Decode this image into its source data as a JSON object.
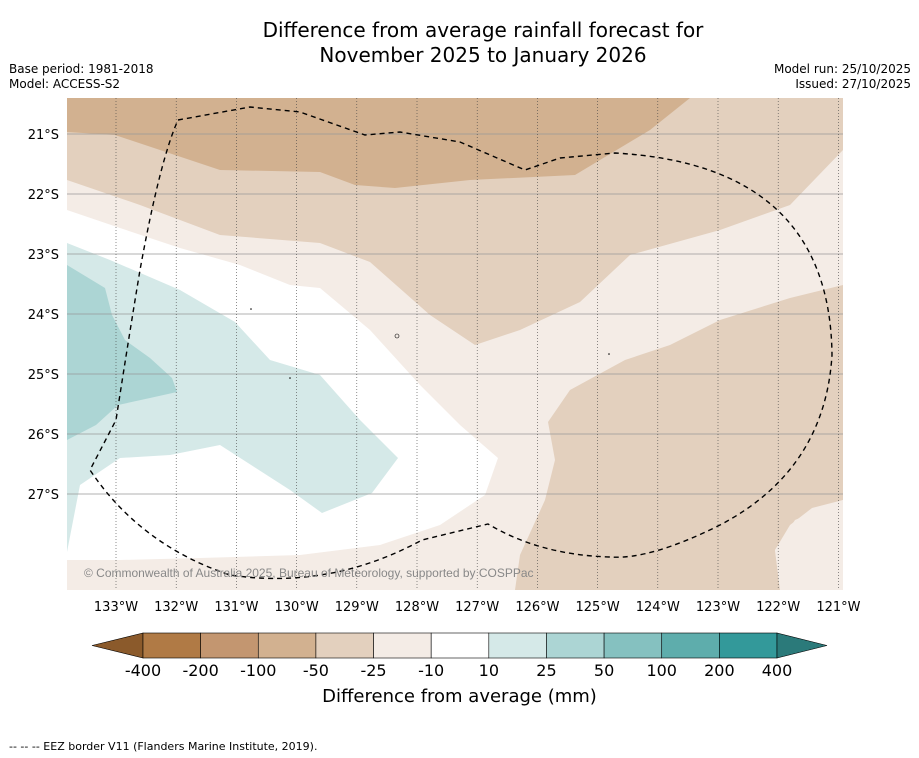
{
  "title": {
    "line1": "Difference from average rainfall forecast for",
    "line2": "November 2025 to January 2026"
  },
  "meta": {
    "base_period": "Base period: 1981-2018",
    "model": "Model: ACCESS-S2",
    "model_run": "Model run: 25/10/2025",
    "issued": "Issued: 27/10/2025"
  },
  "map": {
    "lat_labels": [
      "21°S",
      "22°S",
      "23°S",
      "24°S",
      "25°S",
      "26°S",
      "27°S"
    ],
    "lon_labels": [
      "133°W",
      "132°W",
      "131°W",
      "130°W",
      "129°W",
      "128°W",
      "127°W",
      "126°W",
      "125°W",
      "124°W",
      "123°W",
      "122°W",
      "121°W"
    ],
    "copyright": "© Commonwealth of Australia 2025, Bureau of Meteorology, supported by COSPPac",
    "colors": {
      "dry_100_50": "#d2b190",
      "dry_50_25": "#e3d0be",
      "dry_25_10": "#f4ece6",
      "neutral": "#ffffff",
      "wet_10_25": "#d5e9e8",
      "wet_25_50": "#acd5d4"
    }
  },
  "colorbar": {
    "labels": [
      "-400",
      "-200",
      "-100",
      "-50",
      "-25",
      "-10",
      "10",
      "25",
      "50",
      "100",
      "200",
      "400"
    ],
    "colors": [
      "#8b5a2b",
      "#b07a45",
      "#c39670",
      "#d2b190",
      "#e3d0be",
      "#f4ece6",
      "#ffffff",
      "#d5e9e8",
      "#acd5d4",
      "#85c1c0",
      "#5eadac",
      "#33999a",
      "#2b7a7a"
    ],
    "title": "Difference from average (mm)"
  },
  "footnote": "--  --  -- EEZ border V11 (Flanders Marine Institute, 2019)."
}
